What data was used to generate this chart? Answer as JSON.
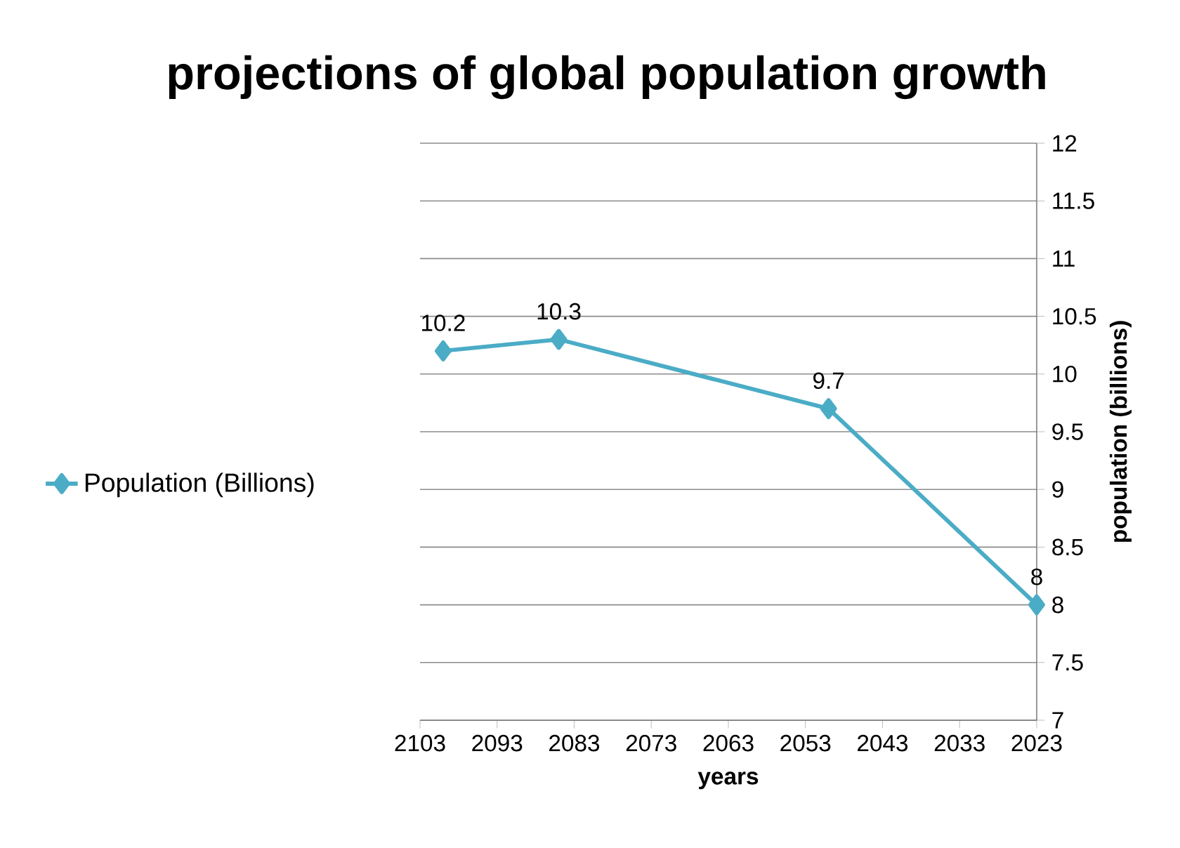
{
  "chart_data": {
    "type": "line",
    "title": "projections of global population growth",
    "xlabel": "years",
    "ylabel": "population  (billions)",
    "x": [
      2100,
      2085,
      2050,
      2023
    ],
    "series": [
      {
        "name": "Population (Billions)",
        "color": "#4bacc6",
        "values": [
          10.2,
          10.3,
          9.7,
          8
        ]
      }
    ],
    "xlim": [
      2103,
      2023
    ],
    "xticks": [
      2103,
      2093,
      2083,
      2073,
      2063,
      2053,
      2043,
      2033,
      2023
    ],
    "ylim": [
      7,
      12
    ],
    "yticks": [
      7,
      7.5,
      8,
      8.5,
      9,
      9.5,
      10,
      10.5,
      11,
      11.5,
      12
    ],
    "grid": "y",
    "legend": "left",
    "marker": "diamond",
    "data_labels": true
  }
}
